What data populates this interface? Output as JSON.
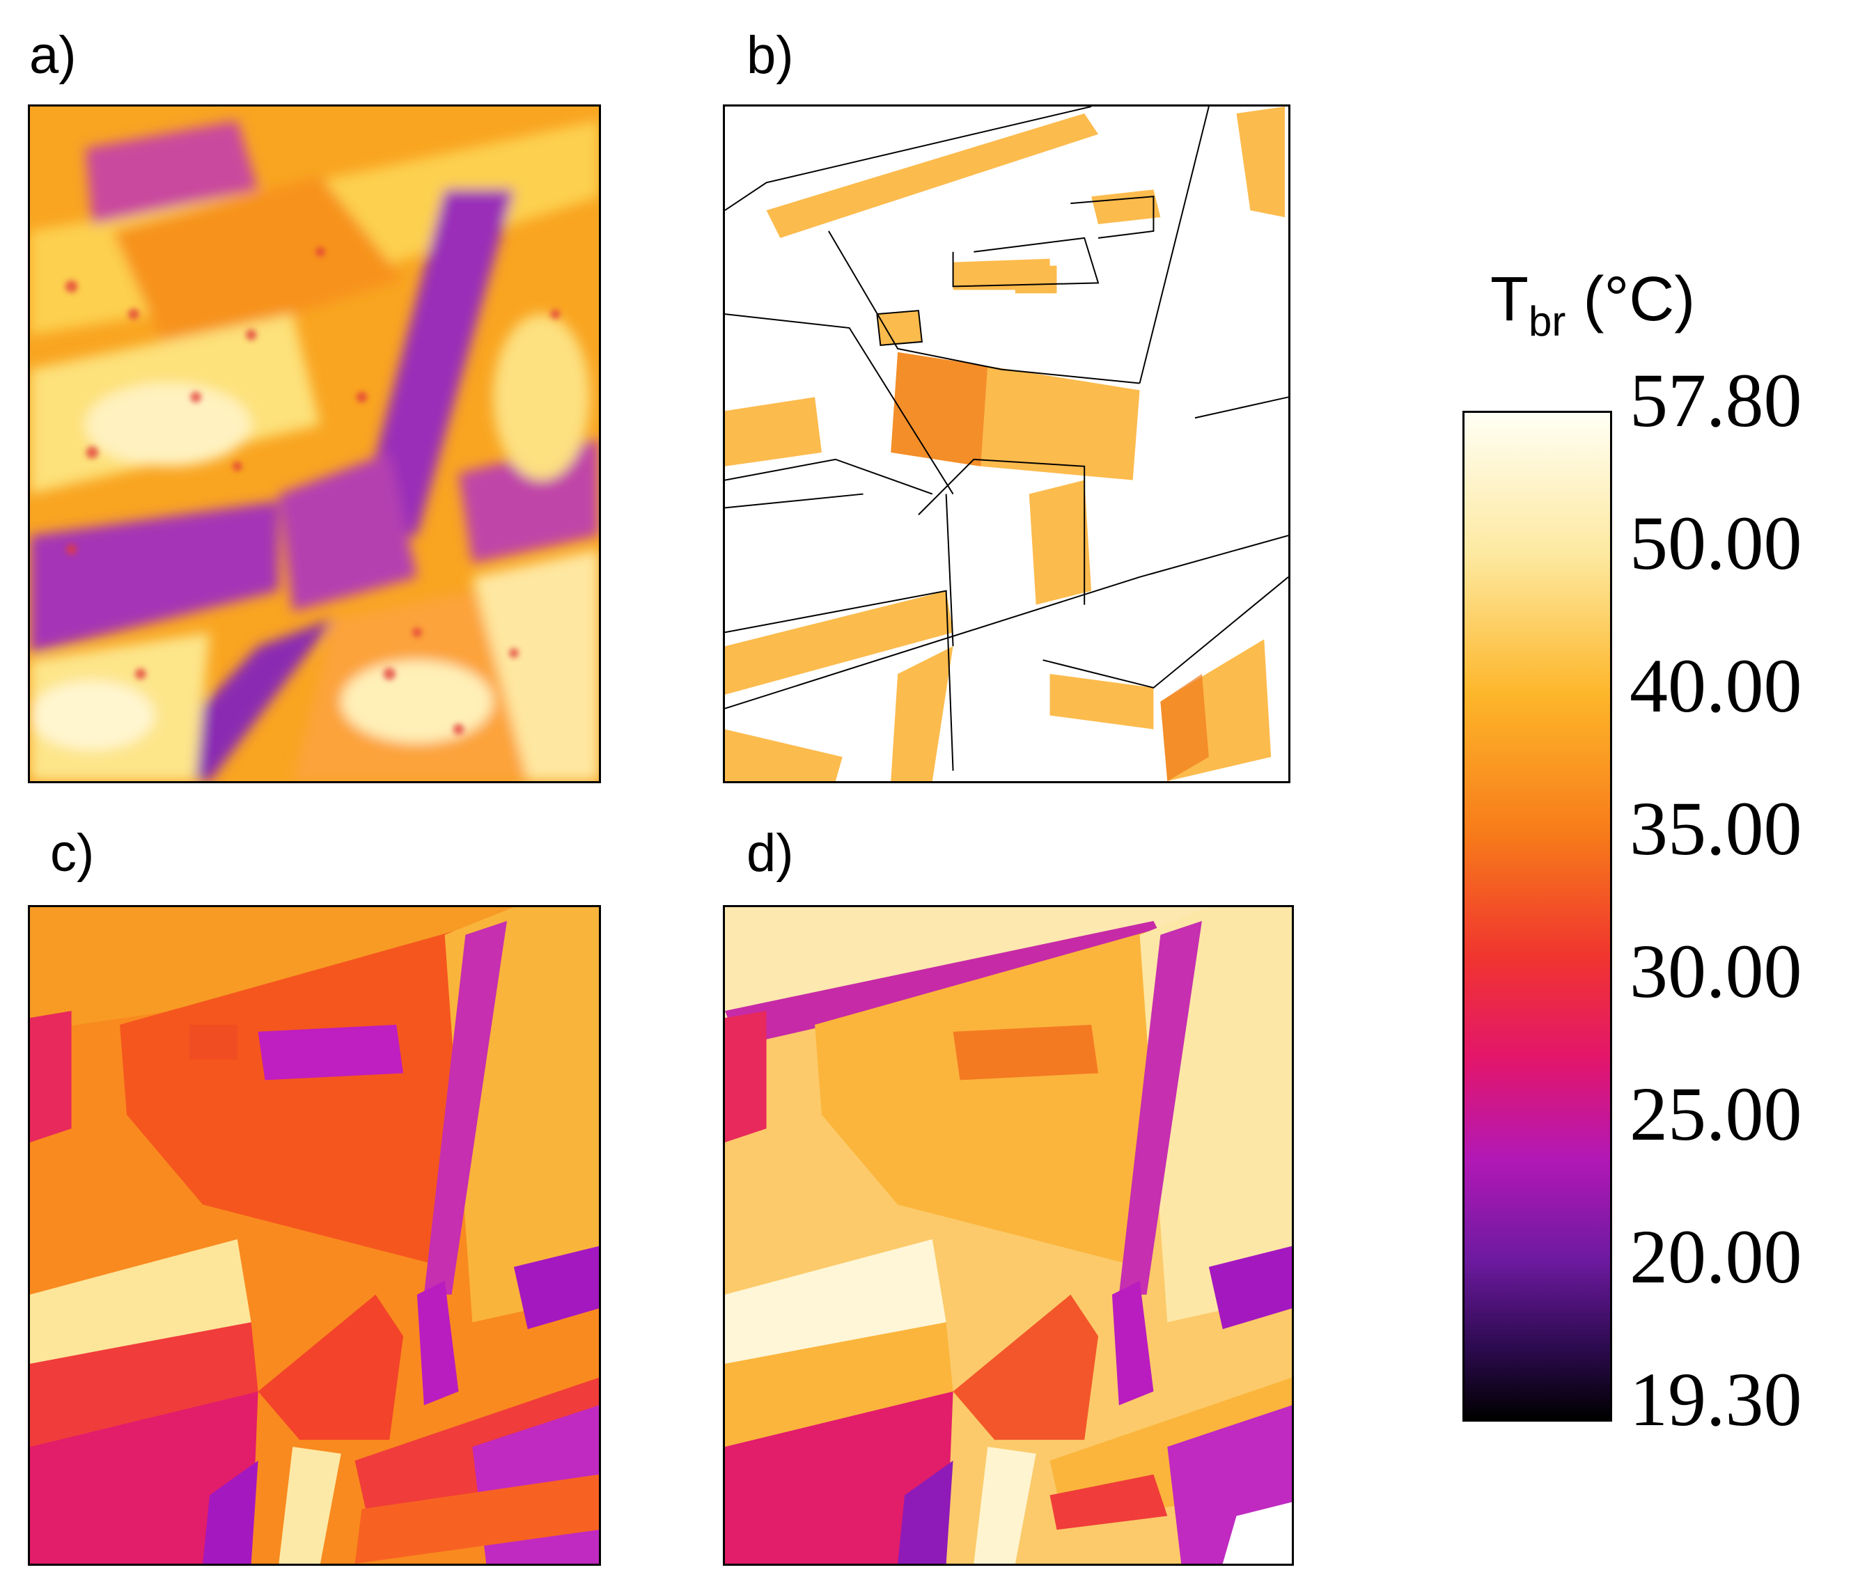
{
  "panels": [
    {
      "label": "a)"
    },
    {
      "label": "b)"
    },
    {
      "label": "c)"
    },
    {
      "label": "d)"
    }
  ],
  "colorbar": {
    "title_main": "T",
    "title_sub": "br",
    "title_unit": " (°C)",
    "colormap": "inferno-like (black → purple → magenta → red → orange → yellow → white)",
    "ticks": [
      "57.80",
      "50.00",
      "40.00",
      "35.00",
      "30.00",
      "25.00",
      "20.00",
      "19.30"
    ],
    "colors": {
      "white": "#fffff4",
      "yellow": "#fde9a0",
      "orange": "#fdb62a",
      "red": "#f0352f",
      "magenta": "#e3166a",
      "purple": "#b318b5",
      "black": "#000000"
    }
  }
}
